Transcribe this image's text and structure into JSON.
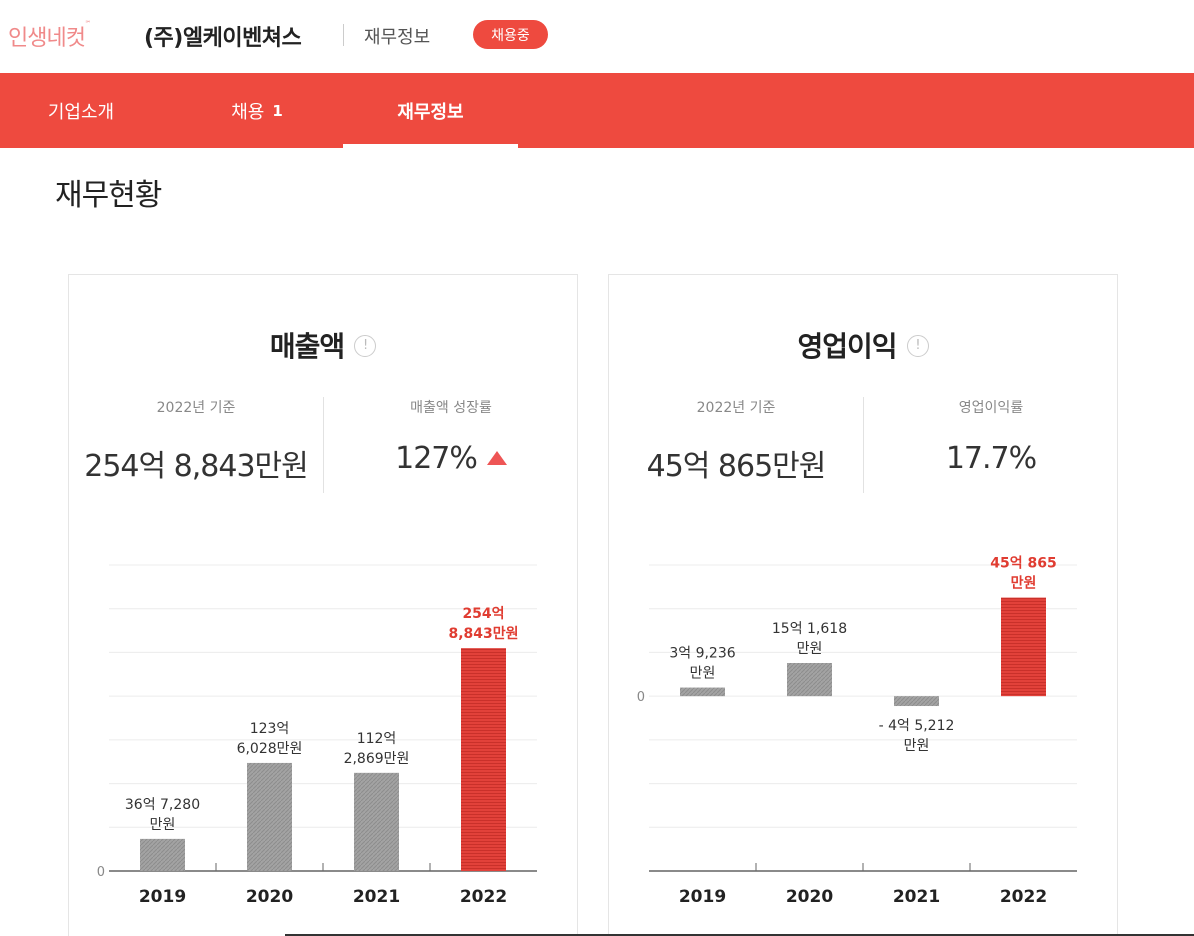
{
  "header": {
    "logo": "인생네컷",
    "logo_mark": "℠",
    "company": "(주)엘케이벤쳐스",
    "breadcrumb": "재무정보",
    "badge": "채용중"
  },
  "nav": {
    "tabs": [
      {
        "label": "기업소개",
        "count": ""
      },
      {
        "label": "채용",
        "count": "1"
      },
      {
        "label": "재무정보",
        "count": ""
      }
    ]
  },
  "section_title": "재무현황",
  "cards": [
    {
      "title": "매출액",
      "info_icon": "info-circle-icon",
      "stats": [
        {
          "label": "2022년 기준",
          "value": "254억 8,843만원"
        },
        {
          "label": "매출액 성장률",
          "value": "127%",
          "trend": "up"
        }
      ]
    },
    {
      "title": "영업이익",
      "info_icon": "info-circle-icon",
      "stats": [
        {
          "label": "2022년 기준",
          "value": "45억 865만원"
        },
        {
          "label": "영업이익률",
          "value": "17.7%"
        }
      ]
    }
  ],
  "chart_data": [
    {
      "type": "bar",
      "categories": [
        "2019",
        "2020",
        "2021",
        "2022"
      ],
      "values": [
        3672.8,
        12360.28,
        11228.69,
        25488.43
      ],
      "unit": "만원",
      "data_labels": [
        [
          "36억 7,280",
          "만원"
        ],
        [
          "123억",
          "6,028만원"
        ],
        [
          "112억",
          "2,869만원"
        ],
        [
          "254억",
          "8,843만원"
        ]
      ],
      "ylim": [
        0,
        35000
      ],
      "zero_label": "0",
      "grid": true,
      "colors": [
        "#9a9a9a",
        "#9a9a9a",
        "#9a9a9a",
        "#e03c31"
      ],
      "label_colors": [
        "#333333",
        "#333333",
        "#333333",
        "#e03c31"
      ]
    },
    {
      "type": "bar",
      "categories": [
        "2019",
        "2020",
        "2021",
        "2022"
      ],
      "values": [
        39236,
        151618,
        -45212,
        450865
      ],
      "unit": "만원",
      "data_labels": [
        [
          "3억 9,236",
          "만원"
        ],
        [
          "15억 1,618",
          "만원"
        ],
        [
          "- 4억 5,212",
          "만원"
        ],
        [
          "45억 865",
          "만원"
        ]
      ],
      "ylim": [
        -800000,
        600000
      ],
      "zero_label": "0",
      "grid": true,
      "colors": [
        "#9a9a9a",
        "#9a9a9a",
        "#9a9a9a",
        "#e03c31"
      ],
      "label_colors": [
        "#333333",
        "#333333",
        "#333333",
        "#e03c31"
      ]
    }
  ]
}
